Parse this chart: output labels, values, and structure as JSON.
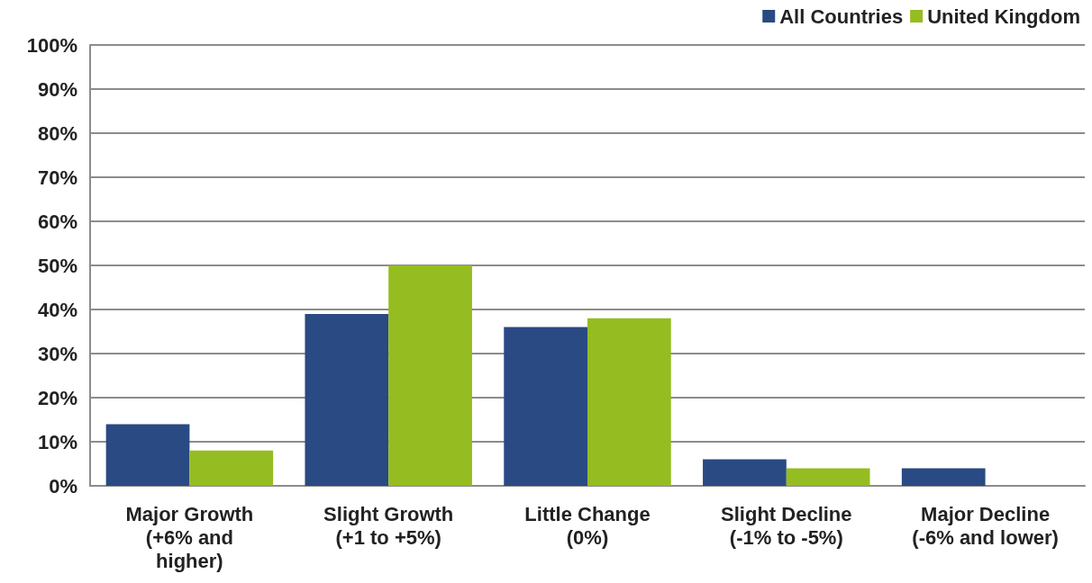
{
  "chart_data": {
    "type": "bar",
    "categories": [
      "Major Growth\n(+6% and\nhigher)",
      "Slight Growth\n(+1 to +5%)",
      "Little Change\n(0%)",
      "Slight Decline\n(-1% to -5%)",
      "Major Decline\n(-6% and lower)"
    ],
    "series": [
      {
        "name": "All Countries",
        "color": "#294a82",
        "values": [
          14,
          39,
          36,
          6,
          4
        ]
      },
      {
        "name": "United Kingdom",
        "color": "#95bc20",
        "values": [
          8,
          50,
          38,
          4,
          0
        ]
      }
    ],
    "ylim": [
      0,
      100
    ],
    "yticks": [
      {
        "value": 0,
        "label": "0%"
      },
      {
        "value": 10,
        "label": "10%"
      },
      {
        "value": 20,
        "label": "20%"
      },
      {
        "value": 30,
        "label": "30%"
      },
      {
        "value": 40,
        "label": "40%"
      },
      {
        "value": 50,
        "label": "50%"
      },
      {
        "value": 60,
        "label": "60%"
      },
      {
        "value": 70,
        "label": "70%"
      },
      {
        "value": 80,
        "label": "80%"
      },
      {
        "value": 90,
        "label": "90%"
      },
      {
        "value": 100,
        "label": "100%"
      }
    ],
    "grid": "y",
    "legend": "top right"
  }
}
